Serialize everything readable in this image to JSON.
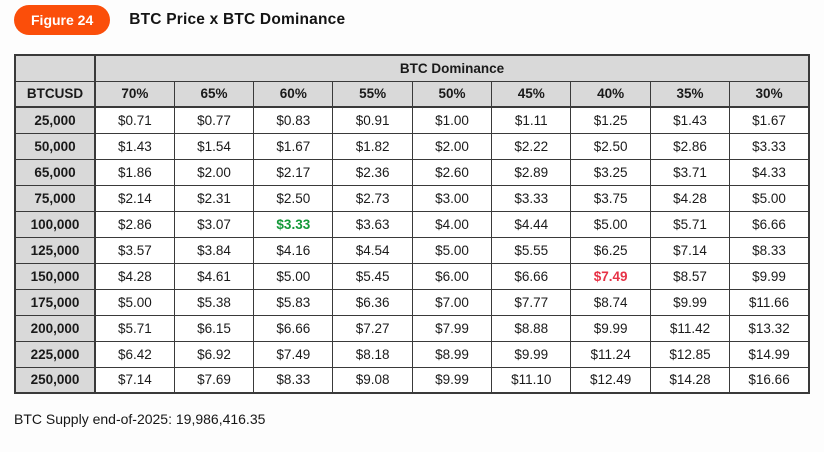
{
  "figure": {
    "badge": "Figure 24",
    "title": "BTC Price x BTC Dominance"
  },
  "table": {
    "group_header": "BTC Dominance",
    "corner_label": "",
    "row_header_label": "BTCUSD",
    "columns": [
      "70%",
      "65%",
      "60%",
      "55%",
      "50%",
      "45%",
      "40%",
      "35%",
      "30%"
    ],
    "rows": [
      {
        "label": "25,000",
        "values": [
          "$0.71",
          "$0.77",
          "$0.83",
          "$0.91",
          "$1.00",
          "$1.11",
          "$1.25",
          "$1.43",
          "$1.67"
        ]
      },
      {
        "label": "50,000",
        "values": [
          "$1.43",
          "$1.54",
          "$1.67",
          "$1.82",
          "$2.00",
          "$2.22",
          "$2.50",
          "$2.86",
          "$3.33"
        ]
      },
      {
        "label": "65,000",
        "values": [
          "$1.86",
          "$2.00",
          "$2.17",
          "$2.36",
          "$2.60",
          "$2.89",
          "$3.25",
          "$3.71",
          "$4.33"
        ]
      },
      {
        "label": "75,000",
        "values": [
          "$2.14",
          "$2.31",
          "$2.50",
          "$2.73",
          "$3.00",
          "$3.33",
          "$3.75",
          "$4.28",
          "$5.00"
        ]
      },
      {
        "label": "100,000",
        "values": [
          "$2.86",
          "$3.07",
          "$3.33",
          "$3.63",
          "$4.00",
          "$4.44",
          "$5.00",
          "$5.71",
          "$6.66"
        ]
      },
      {
        "label": "125,000",
        "values": [
          "$3.57",
          "$3.84",
          "$4.16",
          "$4.54",
          "$5.00",
          "$5.55",
          "$6.25",
          "$7.14",
          "$8.33"
        ]
      },
      {
        "label": "150,000",
        "values": [
          "$4.28",
          "$4.61",
          "$5.00",
          "$5.45",
          "$6.00",
          "$6.66",
          "$7.49",
          "$8.57",
          "$9.99"
        ]
      },
      {
        "label": "175,000",
        "values": [
          "$5.00",
          "$5.38",
          "$5.83",
          "$6.36",
          "$7.00",
          "$7.77",
          "$8.74",
          "$9.99",
          "$11.66"
        ]
      },
      {
        "label": "200,000",
        "values": [
          "$5.71",
          "$6.15",
          "$6.66",
          "$7.27",
          "$7.99",
          "$8.88",
          "$9.99",
          "$11.42",
          "$13.32"
        ]
      },
      {
        "label": "225,000",
        "values": [
          "$6.42",
          "$6.92",
          "$7.49",
          "$8.18",
          "$8.99",
          "$9.99",
          "$11.24",
          "$12.85",
          "$14.99"
        ]
      },
      {
        "label": "250,000",
        "values": [
          "$7.14",
          "$7.69",
          "$8.33",
          "$9.08",
          "$9.99",
          "$11.10",
          "$12.49",
          "$14.28",
          "$16.66"
        ]
      }
    ],
    "highlights": [
      {
        "row": "100,000",
        "column": "60%",
        "color": "green"
      },
      {
        "row": "150,000",
        "column": "40%",
        "color": "red"
      }
    ]
  },
  "footer": {
    "note": "BTC Supply end-of-2025: 19,986,416.35"
  },
  "colors": {
    "badge_bg": "#FB4E0A",
    "header_bg": "#D9D9D9",
    "border": "#3A3A3A",
    "highlight_green": "#149939",
    "highlight_red": "#E73347"
  },
  "chart_data": {
    "type": "table",
    "title": "BTC Price x BTC Dominance",
    "column_group_label": "BTC Dominance",
    "row_axis_label": "BTCUSD",
    "columns_dominance_pct": [
      70,
      65,
      60,
      55,
      50,
      45,
      40,
      35,
      30
    ],
    "rows_btcusd": [
      25000,
      50000,
      65000,
      75000,
      100000,
      125000,
      150000,
      175000,
      200000,
      225000,
      250000
    ],
    "values_usd": [
      [
        0.71,
        0.77,
        0.83,
        0.91,
        1.0,
        1.11,
        1.25,
        1.43,
        1.67
      ],
      [
        1.43,
        1.54,
        1.67,
        1.82,
        2.0,
        2.22,
        2.5,
        2.86,
        3.33
      ],
      [
        1.86,
        2.0,
        2.17,
        2.36,
        2.6,
        2.89,
        3.25,
        3.71,
        4.33
      ],
      [
        2.14,
        2.31,
        2.5,
        2.73,
        3.0,
        3.33,
        3.75,
        4.28,
        5.0
      ],
      [
        2.86,
        3.07,
        3.33,
        3.63,
        4.0,
        4.44,
        5.0,
        5.71,
        6.66
      ],
      [
        3.57,
        3.84,
        4.16,
        4.54,
        5.0,
        5.55,
        6.25,
        7.14,
        8.33
      ],
      [
        4.28,
        4.61,
        5.0,
        5.45,
        6.0,
        6.66,
        7.49,
        8.57,
        9.99
      ],
      [
        5.0,
        5.38,
        5.83,
        6.36,
        7.0,
        7.77,
        8.74,
        9.99,
        11.66
      ],
      [
        5.71,
        6.15,
        6.66,
        7.27,
        7.99,
        8.88,
        9.99,
        11.42,
        13.32
      ],
      [
        6.42,
        6.92,
        7.49,
        8.18,
        8.99,
        9.99,
        11.24,
        12.85,
        14.99
      ],
      [
        7.14,
        7.69,
        8.33,
        9.08,
        9.99,
        11.1,
        12.49,
        14.28,
        16.66
      ]
    ],
    "annotations": [
      {
        "row_btcusd": 100000,
        "column_pct": 60,
        "value": 3.33,
        "style": "green-bold"
      },
      {
        "row_btcusd": 150000,
        "column_pct": 40,
        "value": 7.49,
        "style": "red-bold"
      }
    ],
    "footnote": "BTC Supply end-of-2025: 19,986,416.35"
  }
}
